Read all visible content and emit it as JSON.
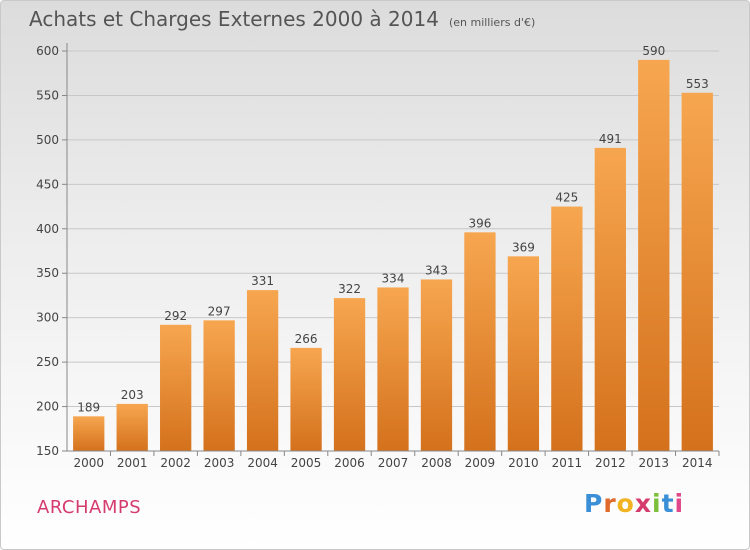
{
  "chart_data": {
    "type": "bar",
    "title": "Achats et Charges Externes 2000 à 2014",
    "subtitle": "(en milliers d'€)",
    "categories": [
      "2000",
      "2001",
      "2002",
      "2003",
      "2004",
      "2005",
      "2006",
      "2007",
      "2008",
      "2009",
      "2010",
      "2011",
      "2012",
      "2013",
      "2014"
    ],
    "values": [
      189,
      203,
      292,
      297,
      331,
      266,
      322,
      334,
      343,
      396,
      369,
      425,
      491,
      590,
      553
    ],
    "ylim": [
      150,
      600
    ],
    "yticks": [
      150,
      200,
      250,
      300,
      350,
      400,
      450,
      500,
      550,
      600
    ],
    "grid": true,
    "bar_color": "#f0913a"
  },
  "footer": {
    "town": "ARCHAMPS",
    "logo": "Proxiti",
    "town_color": "#d63b6e"
  }
}
